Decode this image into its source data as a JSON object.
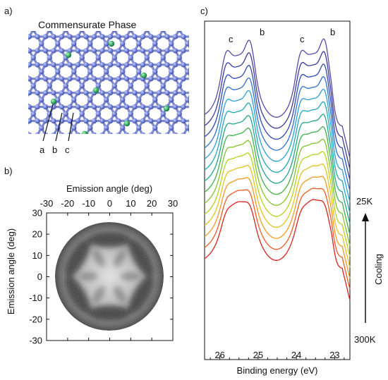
{
  "panel_a": {
    "label": "a)",
    "title": "Commensurate Phase",
    "site_labels": [
      "a",
      "b",
      "c"
    ]
  },
  "panel_b": {
    "label": "b)",
    "top_axis_label": "Emission angle (deg)",
    "left_axis_label": "Emission angle (deg)",
    "x_ticks": [
      "-30",
      "-20",
      "-10",
      "0",
      "10",
      "20",
      "30"
    ],
    "y_ticks": [
      "30",
      "20",
      "10",
      "0",
      "-10",
      "-20",
      "-30"
    ]
  },
  "panel_c": {
    "label": "c)",
    "peak_labels": [
      "c",
      "b",
      "c",
      "b"
    ],
    "cooling_label": "Cooling",
    "temp_top": "25K",
    "temp_bottom": "300K"
  },
  "chart_data": [
    {
      "type": "heatmap",
      "title": "",
      "xlabel": "Emission angle (deg)",
      "ylabel": "Emission angle (deg)",
      "xlim": [
        -30,
        30
      ],
      "ylim": [
        -30,
        30
      ],
      "xticks": [
        -30,
        -20,
        -10,
        0,
        10,
        20,
        30
      ],
      "yticks": [
        30,
        20,
        10,
        0,
        -10,
        -20,
        -30
      ],
      "grid": false
    },
    {
      "type": "line",
      "title": "",
      "xlabel": "Binding energy (eV)",
      "ylabel": "",
      "xlim": [
        26.4,
        22.6
      ],
      "x_reversed": true,
      "xticks": [
        26,
        25,
        24,
        23
      ],
      "n_series": 14,
      "series_colors": [
        "#dd2020",
        "#ef5a20",
        "#f29a20",
        "#e6c21e",
        "#b8d11c",
        "#7fc52a",
        "#3fb04a",
        "#22a58a",
        "#20a8b8",
        "#2a9fd6",
        "#2f6fcf",
        "#2f48b4",
        "#3a3a9e",
        "#5a4aa8"
      ],
      "peaks_eV": [
        25.85,
        25.2,
        23.9,
        23.25
      ],
      "legend": "none"
    }
  ]
}
